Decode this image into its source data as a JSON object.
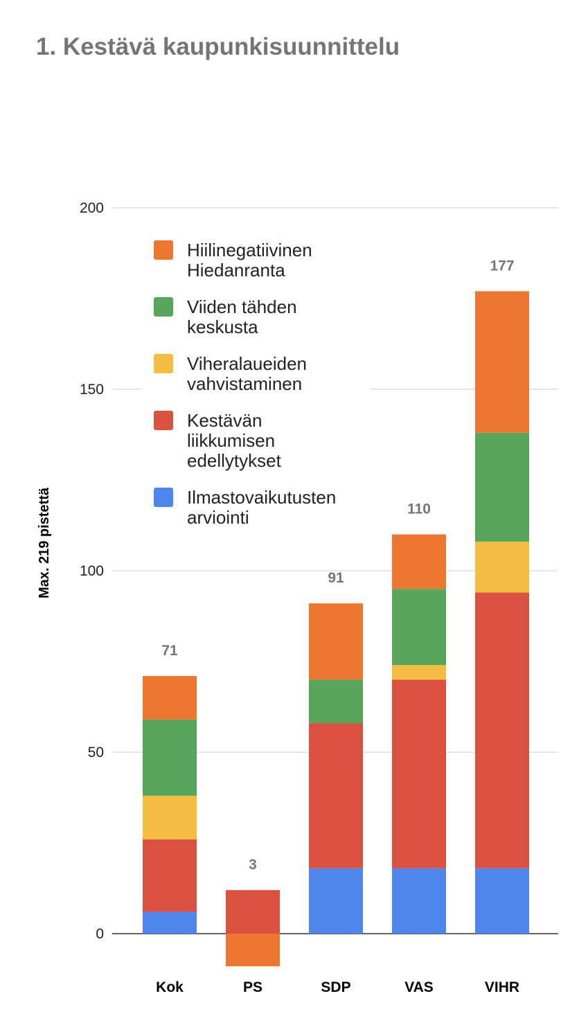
{
  "chart_data": {
    "type": "bar",
    "stacked": true,
    "title": "1. Kestävä kaupunkisuunnittelu",
    "ylabel": "Max. 219 pistettä",
    "xlabel": "",
    "ylim": [
      0,
      200
    ],
    "yticks": [
      0,
      50,
      100,
      150,
      200
    ],
    "grid": true,
    "legend_position": "top-left",
    "categories": [
      "Kok",
      "PS",
      "SDP",
      "VAS",
      "VIHR"
    ],
    "totals": [
      71,
      3,
      91,
      110,
      177
    ],
    "series": [
      {
        "name": "Ilmastovaikutusten arviointi",
        "color": "#4f86ec",
        "values": [
          6,
          0,
          18,
          18,
          18
        ]
      },
      {
        "name": "Kestävän liikkumisen edellytykset",
        "color": "#db5140",
        "values": [
          20,
          12,
          40,
          52,
          76
        ]
      },
      {
        "name": "Viheralaueiden vahvistaminen",
        "color": "#f3bd41",
        "values": [
          12,
          0,
          0,
          4,
          14
        ]
      },
      {
        "name": "Viiden tähden keskusta",
        "color": "#58a55c",
        "values": [
          21,
          0,
          12,
          21,
          30
        ]
      },
      {
        "name": "Hiilinegatiivinen Hiedanranta",
        "color": "#ed7631",
        "values": [
          12,
          -9,
          21,
          15,
          39
        ]
      }
    ],
    "legend": [
      {
        "lines": [
          "Hiilinegatiivinen",
          "Hiedanranta"
        ],
        "color": "#ed7631"
      },
      {
        "lines": [
          "Viiden tähden",
          "keskusta"
        ],
        "color": "#58a55c"
      },
      {
        "lines": [
          "Viheralaueiden",
          "vahvistaminen"
        ],
        "color": "#f3bd41"
      },
      {
        "lines": [
          "Kestävän",
          "liikkumisen",
          "edellytykset"
        ],
        "color": "#db5140"
      },
      {
        "lines": [
          "Ilmastovaikutusten",
          "arviointi"
        ],
        "color": "#4f86ec"
      }
    ]
  }
}
